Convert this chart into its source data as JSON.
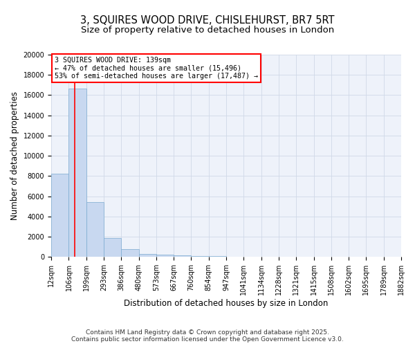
{
  "title_line1": "3, SQUIRES WOOD DRIVE, CHISLEHURST, BR7 5RT",
  "title_line2": "Size of property relative to detached houses in London",
  "xlabel": "Distribution of detached houses by size in London",
  "ylabel": "Number of detached properties",
  "bar_values": [
    8200,
    16650,
    5400,
    1850,
    750,
    300,
    200,
    150,
    100,
    55,
    40,
    25,
    15,
    10,
    7,
    5,
    4,
    3,
    2,
    1
  ],
  "bin_edges": [
    12,
    106,
    199,
    293,
    386,
    480,
    573,
    667,
    760,
    854,
    947,
    1041,
    1134,
    1228,
    1321,
    1415,
    1508,
    1602,
    1695,
    1789,
    1882
  ],
  "bar_color": "#c8d8f0",
  "bar_edge_color": "#7aaad0",
  "grid_color": "#d0d8e8",
  "background_color": "#eef2fa",
  "red_line_x": 139,
  "annotation_text": "3 SQUIRES WOOD DRIVE: 139sqm\n← 47% of detached houses are smaller (15,496)\n53% of semi-detached houses are larger (17,487) →",
  "ylim": [
    0,
    20000
  ],
  "yticks": [
    0,
    2000,
    4000,
    6000,
    8000,
    10000,
    12000,
    14000,
    16000,
    18000,
    20000
  ],
  "xtick_labels": [
    "12sqm",
    "106sqm",
    "199sqm",
    "293sqm",
    "386sqm",
    "480sqm",
    "573sqm",
    "667sqm",
    "760sqm",
    "854sqm",
    "947sqm",
    "1041sqm",
    "1134sqm",
    "1228sqm",
    "1321sqm",
    "1415sqm",
    "1508sqm",
    "1602sqm",
    "1695sqm",
    "1789sqm",
    "1882sqm"
  ],
  "footer_text": "Contains HM Land Registry data © Crown copyright and database right 2025.\nContains public sector information licensed under the Open Government Licence v3.0.",
  "title_fontsize": 10.5,
  "subtitle_fontsize": 9.5,
  "tick_fontsize": 7,
  "label_fontsize": 8.5,
  "footer_fontsize": 6.5
}
